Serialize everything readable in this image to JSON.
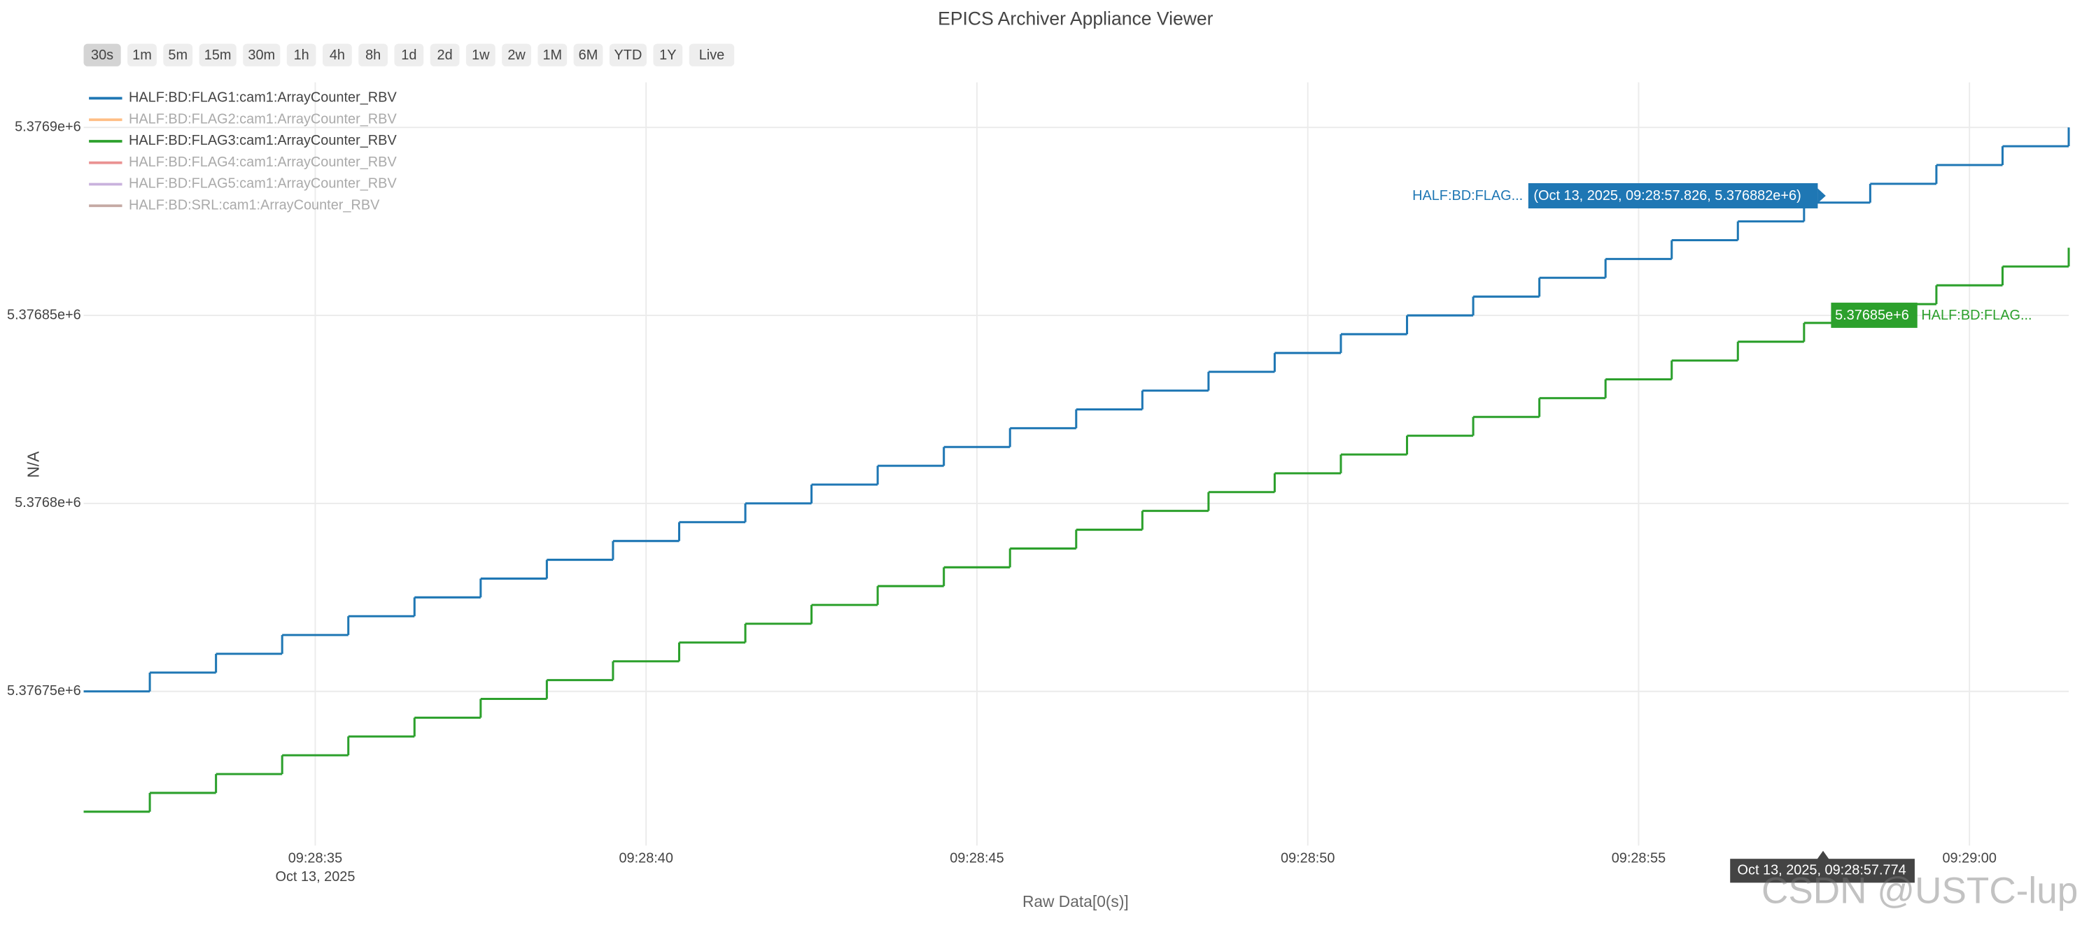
{
  "chart_data": {
    "type": "line",
    "title": "EPICS Archiver Appliance Viewer",
    "range_buttons": [
      "30s",
      "1m",
      "5m",
      "15m",
      "30m",
      "1h",
      "4h",
      "8h",
      "1d",
      "2d",
      "1w",
      "2w",
      "1M",
      "6M",
      "YTD",
      "1Y",
      "Live"
    ],
    "x_label": "Raw Data[0(s)]",
    "y_label": "N/A",
    "x": [
      "09:28:31.500",
      "09:28:32.500",
      "09:28:33.500",
      "09:28:34.500",
      "09:28:35.500",
      "09:28:36.500",
      "09:28:37.500",
      "09:28:38.500",
      "09:28:39.500",
      "09:28:40.500",
      "09:28:41.500",
      "09:28:42.500",
      "09:28:43.500",
      "09:28:44.500",
      "09:28:45.500",
      "09:28:46.500",
      "09:28:47.500",
      "09:28:48.500",
      "09:28:49.500",
      "09:28:50.500",
      "09:28:51.500",
      "09:28:52.500",
      "09:28:53.500",
      "09:28:54.500",
      "09:28:55.500",
      "09:28:56.500",
      "09:28:57.500",
      "09:28:58.500",
      "09:28:59.500",
      "09:29:00.500",
      "09:29:01.500"
    ],
    "x_date_label": "Oct 13, 2025",
    "xlim": [
      "09:28:31.500",
      "09:29:01.500"
    ],
    "xticks": [
      "09:28:35",
      "09:28:40",
      "09:28:45",
      "09:28:50",
      "09:28:55",
      "09:29:00"
    ],
    "ylim": [
      5376709,
      5376912
    ],
    "yticks": [
      {
        "value": 5376750,
        "label": "5.37675e+6"
      },
      {
        "value": 5376800,
        "label": "5.3768e+6"
      },
      {
        "value": 5376850,
        "label": "5.37685e+6"
      },
      {
        "value": 5376900,
        "label": "5.3769e+6"
      }
    ],
    "grid": true,
    "legend_position": "top-left",
    "series": [
      {
        "name": "HALF:BD:FLAG1:cam1:ArrayCounter_RBV",
        "color": "#1f77b4",
        "visible": true,
        "values": [
          5376750,
          5376755,
          5376760,
          5376765,
          5376770,
          5376775,
          5376780,
          5376785,
          5376790,
          5376795,
          5376800,
          5376805,
          5376810,
          5376815,
          5376820,
          5376825,
          5376830,
          5376835,
          5376840,
          5376845,
          5376850,
          5376855,
          5376860,
          5376865,
          5376870,
          5376875,
          5376880,
          5376885,
          5376890,
          5376895,
          5376900
        ]
      },
      {
        "name": "HALF:BD:FLAG2:cam1:ArrayCounter_RBV",
        "color": "#ff7f0e",
        "visible": false
      },
      {
        "name": "HALF:BD:FLAG3:cam1:ArrayCounter_RBV",
        "color": "#2ca02c",
        "visible": true,
        "values": [
          5376718,
          5376723,
          5376728,
          5376733,
          5376738,
          5376743,
          5376748,
          5376753,
          5376758,
          5376763,
          5376768,
          5376773,
          5376778,
          5376783,
          5376788,
          5376793,
          5376798,
          5376803,
          5376808,
          5376813,
          5376818,
          5376823,
          5376828,
          5376833,
          5376838,
          5376843,
          5376848,
          5376853,
          5376858,
          5376863,
          5376868
        ]
      },
      {
        "name": "HALF:BD:FLAG4:cam1:ArrayCounter_RBV",
        "color": "#d62728",
        "visible": false
      },
      {
        "name": "HALF:BD:FLAG5:cam1:ArrayCounter_RBV",
        "color": "#9467bd",
        "visible": false
      },
      {
        "name": "HALF:BD:SRL:cam1:ArrayCounter_RBV",
        "color": "#8c564b",
        "visible": false
      }
    ],
    "hover": {
      "x_label": "Oct 13, 2025, 09:28:57.774",
      "labels": [
        {
          "name": "HALF:BD:FLAG...",
          "text": "(Oct 13, 2025, 09:28:57.826, 5.376882e+6)",
          "color": "#1f77b4"
        },
        {
          "name": "HALF:BD:FLAG...",
          "text": "5.37685e+6",
          "color": "#2ca02c"
        }
      ]
    },
    "watermark": "CSDN @USTC-lup"
  }
}
